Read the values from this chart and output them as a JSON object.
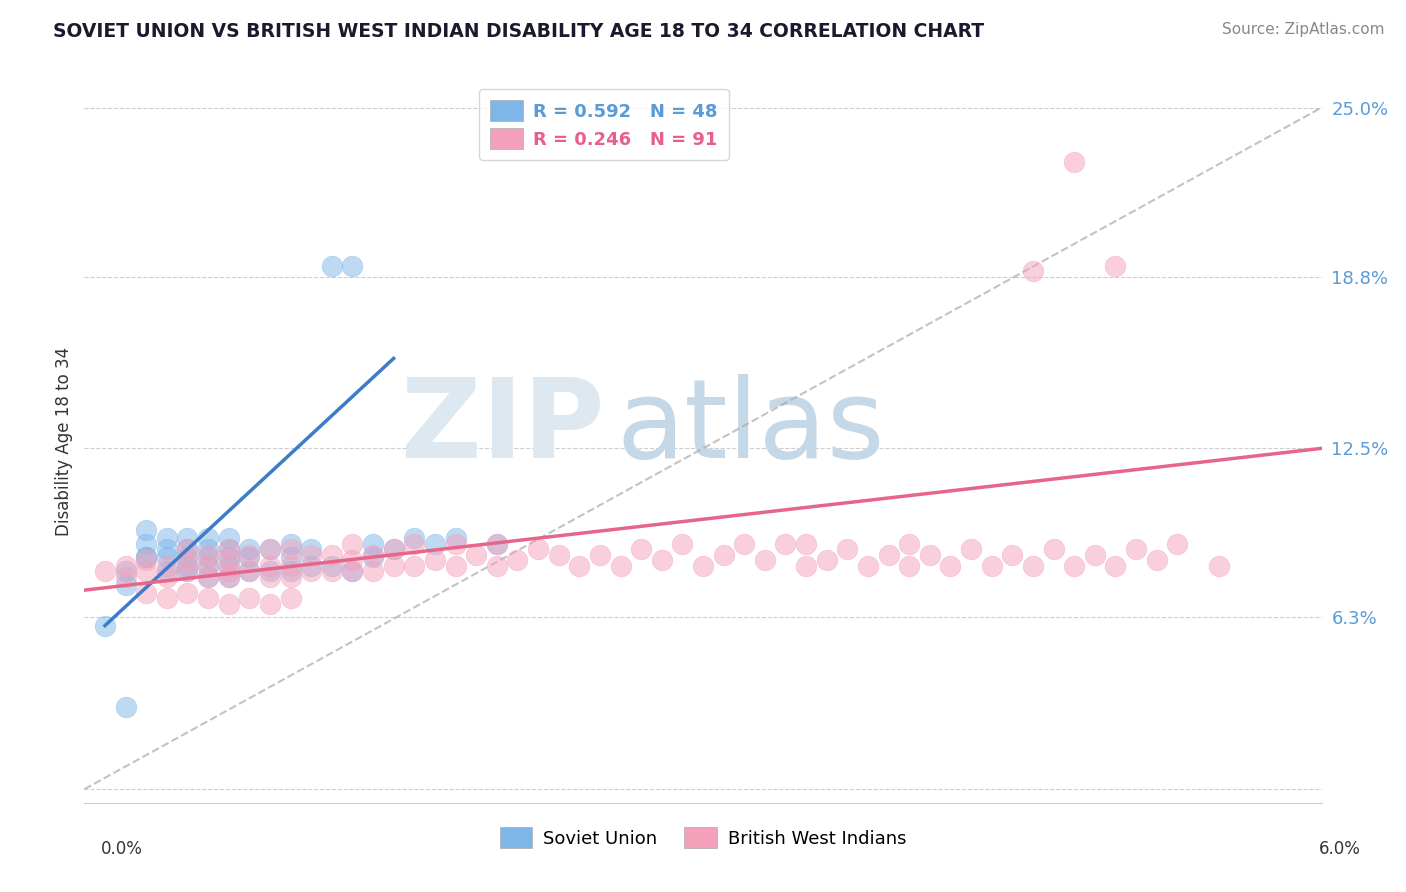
{
  "title": "SOVIET UNION VS BRITISH WEST INDIAN DISABILITY AGE 18 TO 34 CORRELATION CHART",
  "source": "Source: ZipAtlas.com",
  "ylabel": "Disability Age 18 to 34",
  "xlim": [
    0.0,
    0.06
  ],
  "ylim": [
    -0.005,
    0.26
  ],
  "ytick_vals": [
    0.0,
    0.063,
    0.125,
    0.188,
    0.25
  ],
  "ytick_labels": [
    "",
    "6.3%",
    "12.5%",
    "18.8%",
    "25.0%"
  ],
  "legend_r1": "R = 0.592",
  "legend_n1": "N = 48",
  "legend_r2": "R = 0.246",
  "legend_n2": "N = 91",
  "legend_label1": "Soviet Union",
  "legend_label2": "British West Indians",
  "color_blue": "#7eb6e8",
  "color_pink": "#f4a0bb",
  "color_blue_line": "#3d7cc9",
  "color_pink_line": "#e8658a",
  "color_legend_blue": "#5b9bd5",
  "color_legend_pink": "#e8608a",
  "background_color": "#ffffff",
  "grid_color": "#c8c8c8",
  "su_x": [
    0.001,
    0.002,
    0.002,
    0.003,
    0.003,
    0.003,
    0.003,
    0.004,
    0.004,
    0.004,
    0.004,
    0.005,
    0.005,
    0.005,
    0.005,
    0.005,
    0.006,
    0.006,
    0.006,
    0.006,
    0.006,
    0.007,
    0.007,
    0.007,
    0.007,
    0.007,
    0.008,
    0.008,
    0.008,
    0.009,
    0.009,
    0.01,
    0.01,
    0.01,
    0.011,
    0.011,
    0.012,
    0.012,
    0.013,
    0.013,
    0.014,
    0.014,
    0.015,
    0.016,
    0.017,
    0.018,
    0.02,
    0.002
  ],
  "su_y": [
    0.06,
    0.075,
    0.08,
    0.085,
    0.085,
    0.09,
    0.095,
    0.08,
    0.085,
    0.088,
    0.092,
    0.08,
    0.082,
    0.085,
    0.088,
    0.092,
    0.078,
    0.082,
    0.085,
    0.088,
    0.092,
    0.078,
    0.082,
    0.085,
    0.088,
    0.092,
    0.08,
    0.085,
    0.088,
    0.08,
    0.088,
    0.08,
    0.085,
    0.09,
    0.082,
    0.088,
    0.082,
    0.192,
    0.08,
    0.192,
    0.085,
    0.09,
    0.088,
    0.092,
    0.09,
    0.092,
    0.09,
    0.03
  ],
  "bwi_x": [
    0.001,
    0.002,
    0.002,
    0.003,
    0.003,
    0.004,
    0.004,
    0.005,
    0.005,
    0.005,
    0.006,
    0.006,
    0.006,
    0.007,
    0.007,
    0.007,
    0.007,
    0.008,
    0.008,
    0.009,
    0.009,
    0.009,
    0.01,
    0.01,
    0.01,
    0.011,
    0.011,
    0.012,
    0.012,
    0.013,
    0.013,
    0.013,
    0.014,
    0.014,
    0.015,
    0.015,
    0.016,
    0.016,
    0.017,
    0.018,
    0.018,
    0.019,
    0.02,
    0.02,
    0.021,
    0.022,
    0.023,
    0.024,
    0.025,
    0.026,
    0.027,
    0.028,
    0.029,
    0.03,
    0.031,
    0.032,
    0.033,
    0.034,
    0.035,
    0.035,
    0.036,
    0.037,
    0.038,
    0.039,
    0.04,
    0.04,
    0.041,
    0.042,
    0.043,
    0.044,
    0.045,
    0.046,
    0.047,
    0.048,
    0.049,
    0.05,
    0.051,
    0.052,
    0.053,
    0.055,
    0.003,
    0.004,
    0.005,
    0.006,
    0.007,
    0.008,
    0.009,
    0.01,
    0.048,
    0.05,
    0.046
  ],
  "bwi_y": [
    0.08,
    0.078,
    0.082,
    0.08,
    0.084,
    0.078,
    0.082,
    0.08,
    0.084,
    0.088,
    0.078,
    0.082,
    0.086,
    0.078,
    0.08,
    0.084,
    0.088,
    0.08,
    0.086,
    0.078,
    0.082,
    0.088,
    0.078,
    0.082,
    0.088,
    0.08,
    0.086,
    0.08,
    0.086,
    0.08,
    0.084,
    0.09,
    0.08,
    0.086,
    0.082,
    0.088,
    0.082,
    0.09,
    0.084,
    0.082,
    0.09,
    0.086,
    0.082,
    0.09,
    0.084,
    0.088,
    0.086,
    0.082,
    0.086,
    0.082,
    0.088,
    0.084,
    0.09,
    0.082,
    0.086,
    0.09,
    0.084,
    0.09,
    0.082,
    0.09,
    0.084,
    0.088,
    0.082,
    0.086,
    0.082,
    0.09,
    0.086,
    0.082,
    0.088,
    0.082,
    0.086,
    0.082,
    0.088,
    0.082,
    0.086,
    0.082,
    0.088,
    0.084,
    0.09,
    0.082,
    0.072,
    0.07,
    0.072,
    0.07,
    0.068,
    0.07,
    0.068,
    0.07,
    0.23,
    0.192,
    0.19
  ],
  "su_line_x": [
    0.001,
    0.015
  ],
  "su_line_y": [
    0.06,
    0.158
  ],
  "bwi_line_x": [
    0.0,
    0.06
  ],
  "bwi_line_y": [
    0.073,
    0.125
  ],
  "ref_line_x": [
    0.0,
    0.06
  ],
  "ref_line_y": [
    0.0,
    0.25
  ]
}
